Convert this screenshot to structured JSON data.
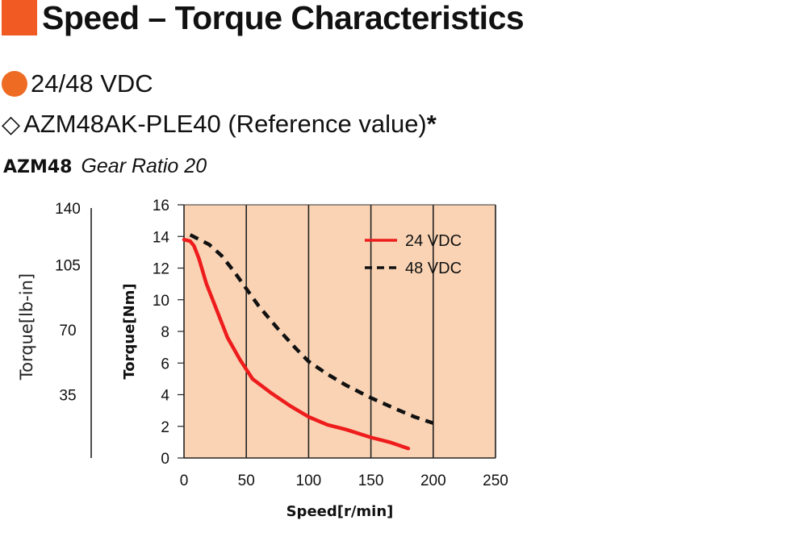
{
  "header": {
    "title": "Speed – Torque Characteristics",
    "accent_color": "#f15a22",
    "voltage": "24/48 VDC",
    "voltage_dot_color": "#ee6b24",
    "model_symbol": "◇",
    "model": "AZM48AK-PLE40 (Reference value)",
    "model_note": "*",
    "sub_model": "AZM48",
    "sub_ratio": "Gear Ratio 20"
  },
  "chart_data": {
    "type": "line",
    "xlabel": "Speed[r/min]",
    "ylabel": "Torque[Nm]",
    "ylabel_secondary": "Torque[lb-in]",
    "xlim": [
      0,
      250
    ],
    "ylim": [
      0,
      16
    ],
    "x_ticks": [
      0,
      50,
      100,
      150,
      200,
      250
    ],
    "y_ticks": [
      0,
      2,
      4,
      6,
      8,
      10,
      12,
      14,
      16
    ],
    "secondary_ticks": [
      {
        "label": "140",
        "nm": 15.8
      },
      {
        "label": "105",
        "nm": 12.2
      },
      {
        "label": "70",
        "nm": 8.1
      },
      {
        "label": "35",
        "nm": 4.0
      }
    ],
    "plot_background": "#f9d3b4",
    "grid": "vertical",
    "legend_position": "top-right",
    "series": [
      {
        "name": "24 VDC",
        "color": "#ee1c1c",
        "style": "solid",
        "x": [
          0,
          5,
          8,
          12,
          18,
          25,
          35,
          45,
          55,
          70,
          85,
          100,
          115,
          130,
          150,
          165,
          180
        ],
        "y": [
          13.8,
          13.7,
          13.4,
          12.6,
          11.0,
          9.6,
          7.6,
          6.2,
          5.0,
          4.1,
          3.3,
          2.6,
          2.1,
          1.8,
          1.3,
          1.0,
          0.6
        ]
      },
      {
        "name": "48 VDC",
        "color": "#111111",
        "style": "dashed",
        "x": [
          5,
          10,
          20,
          30,
          40,
          50,
          60,
          75,
          90,
          100,
          115,
          130,
          150,
          170,
          185,
          200
        ],
        "y": [
          14.1,
          13.9,
          13.5,
          12.8,
          11.8,
          10.7,
          9.6,
          8.2,
          6.9,
          6.1,
          5.3,
          4.6,
          3.8,
          3.1,
          2.6,
          2.2
        ]
      }
    ]
  }
}
